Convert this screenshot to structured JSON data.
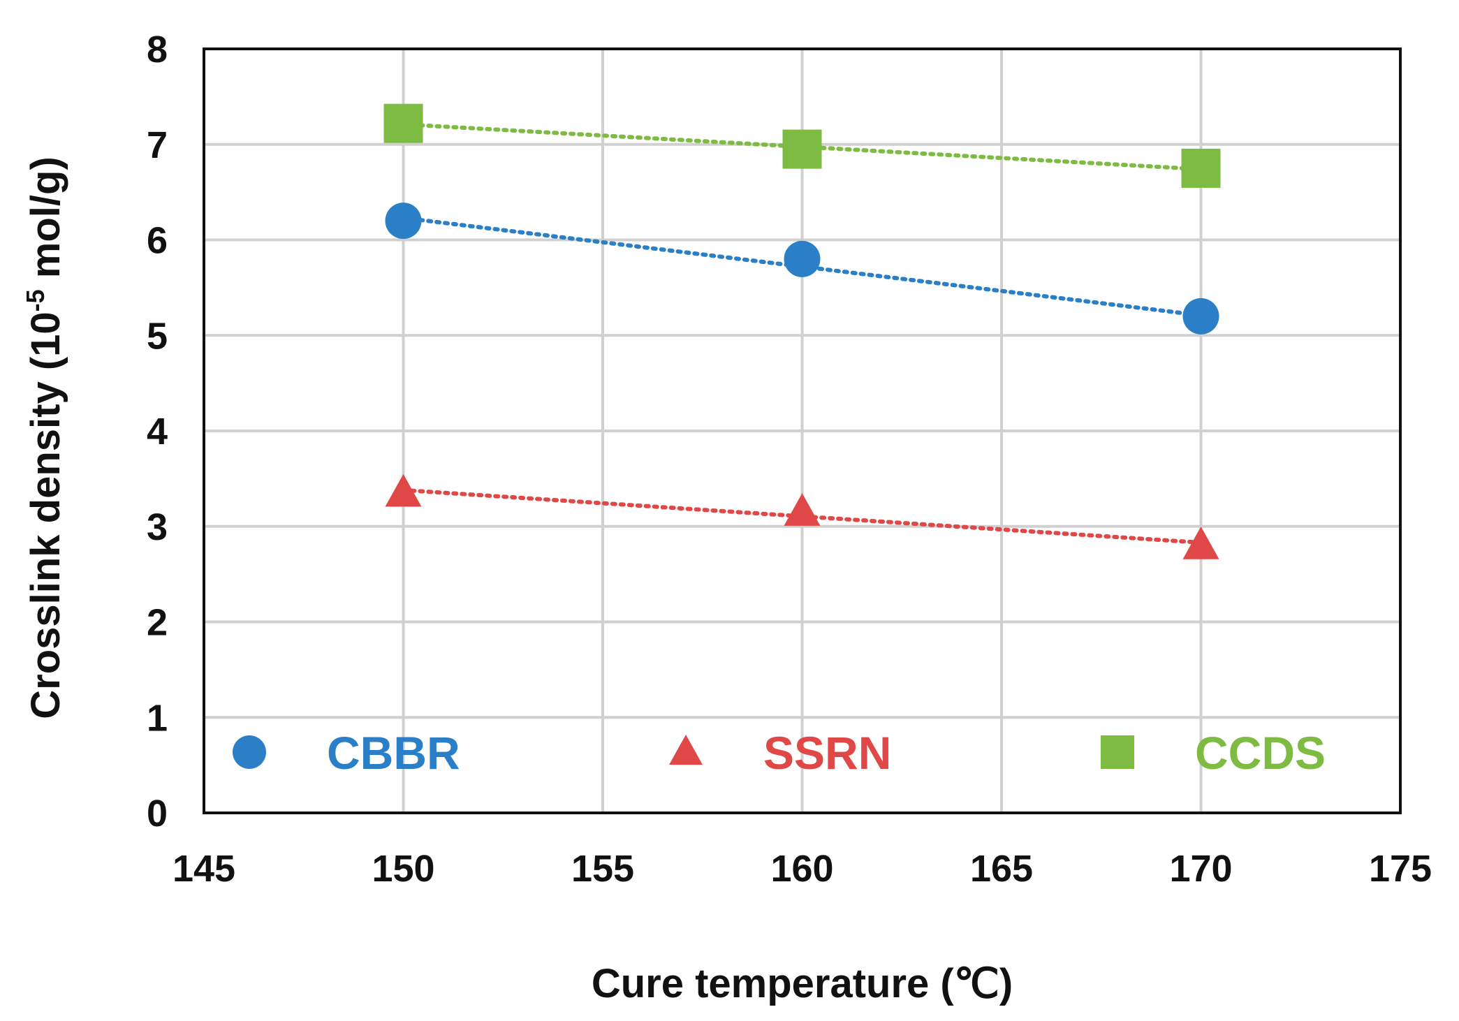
{
  "chart_data": {
    "type": "scatter",
    "title": "",
    "xlabel": "Cure temperature (℃)",
    "ylabel_prefix": "Crosslink density (10",
    "ylabel_sup": "-5",
    "ylabel_suffix": " mol/g)",
    "xlim": [
      145,
      175
    ],
    "ylim": [
      0,
      8
    ],
    "xticks": [
      "145",
      "150",
      "155",
      "160",
      "165",
      "170",
      "175"
    ],
    "yticks": [
      "0",
      "1",
      "2",
      "3",
      "4",
      "5",
      "6",
      "7",
      "8"
    ],
    "grid": true,
    "legend_position": "bottom-inside",
    "series": [
      {
        "name": "CBBR",
        "marker": "circle",
        "color": "#2A7FC6",
        "x": [
          150,
          160,
          170
        ],
        "y": [
          6.2,
          5.8,
          5.2
        ],
        "trendline": [
          6.23,
          5.21
        ]
      },
      {
        "name": "SSRN",
        "marker": "triangle",
        "color": "#E04848",
        "x": [
          150,
          160,
          170
        ],
        "y": [
          3.35,
          3.15,
          2.8
        ],
        "trendline": [
          3.38,
          2.83
        ]
      },
      {
        "name": "CCDS",
        "marker": "square",
        "color": "#7DBB42",
        "x": [
          150,
          160,
          170
        ],
        "y": [
          7.22,
          6.95,
          6.75
        ],
        "trendline": [
          7.21,
          6.74
        ]
      }
    ]
  }
}
